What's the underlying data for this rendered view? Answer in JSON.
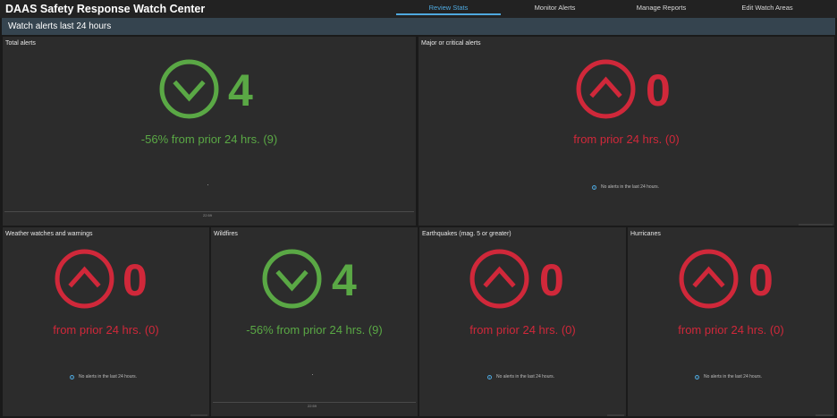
{
  "header": {
    "title": "DAAS Safety Response Watch Center",
    "tabs": [
      {
        "label": "Review Stats",
        "active": true
      },
      {
        "label": "Monitor Alerts",
        "active": false
      },
      {
        "label": "Manage Reports",
        "active": false
      },
      {
        "label": "Edit Watch Areas",
        "active": false
      }
    ]
  },
  "section": {
    "title": "Watch alerts last 24 hours"
  },
  "colors": {
    "good": "#5aa845",
    "bad": "#d0283a",
    "accent": "#4ea8de"
  },
  "panels": {
    "total": {
      "title": "Total alerts",
      "value": "4",
      "change": "-56% from prior 24 hrs. (9)",
      "icon": "chevron-down-icon",
      "axis_label": "22:59"
    },
    "major": {
      "title": "Major or critical alerts",
      "value": "0",
      "change": "from prior 24 hrs. (0)",
      "icon": "chevron-up-icon",
      "no_alerts": "No alerts in the last 24 hours."
    },
    "weather": {
      "title": "Weather watches and warnings",
      "value": "0",
      "change": "from prior 24 hrs. (0)",
      "icon": "chevron-up-icon",
      "no_alerts": "No alerts in the last 24 hours."
    },
    "wildfires": {
      "title": "Wildfires",
      "value": "4",
      "change": "-56% from prior 24 hrs. (9)",
      "icon": "chevron-down-icon",
      "axis_label": "22:59"
    },
    "earthquakes": {
      "title": "Earthquakes (mag. 5 or greater)",
      "value": "0",
      "change": "from prior 24 hrs. (0)",
      "icon": "chevron-up-icon",
      "no_alerts": "No alerts in the last 24 hours."
    },
    "hurricanes": {
      "title": "Hurricanes",
      "value": "0",
      "change": "from prior 24 hrs. (0)",
      "icon": "chevron-up-icon",
      "no_alerts": "No alerts in the last 24 hours."
    }
  }
}
